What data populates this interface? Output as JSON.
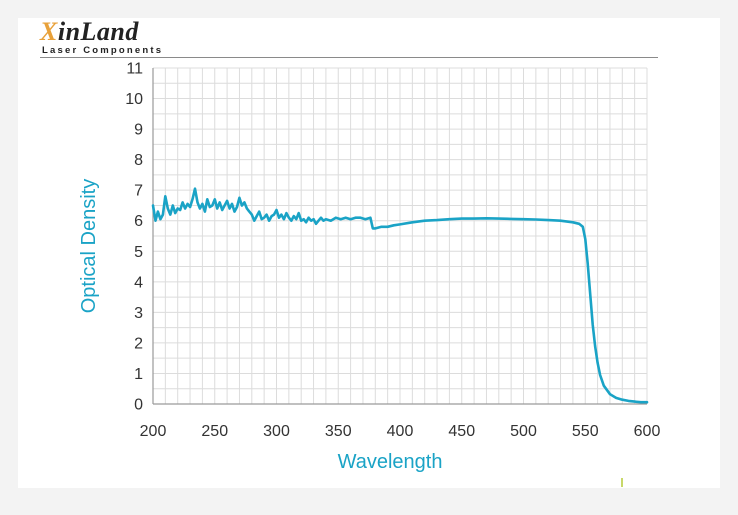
{
  "logo": {
    "name_first": "X",
    "name_rest": "inLand",
    "tagline": "Laser Components"
  },
  "colors": {
    "line": "#1aa3c6",
    "axis_title": "#1aa3c6",
    "grid": "#dcdcdc",
    "logo_accent": "#e8a13a"
  },
  "chart_data": {
    "type": "line",
    "title": "",
    "xlabel": "Wavelength",
    "ylabel": "Optical Density",
    "xlim": [
      200,
      600
    ],
    "ylim": [
      0,
      11
    ],
    "xticks": [
      "200",
      "250",
      "300",
      "350",
      "400",
      "450",
      "500",
      "550",
      "600"
    ],
    "yticks": [
      "0",
      "1",
      "2",
      "3",
      "4",
      "5",
      "6",
      "7",
      "8",
      "9",
      "10",
      "11"
    ],
    "grid": true,
    "series": [
      {
        "name": "",
        "x": [
          200,
          202,
          204,
          206,
          208,
          210,
          212,
          214,
          216,
          218,
          220,
          222,
          224,
          226,
          228,
          230,
          232,
          234,
          236,
          238,
          240,
          242,
          244,
          246,
          248,
          250,
          252,
          254,
          256,
          258,
          260,
          262,
          264,
          266,
          268,
          270,
          272,
          274,
          276,
          278,
          280,
          282,
          284,
          286,
          288,
          290,
          292,
          294,
          296,
          298,
          300,
          302,
          304,
          306,
          308,
          310,
          312,
          314,
          316,
          318,
          320,
          322,
          324,
          326,
          328,
          330,
          332,
          334,
          336,
          338,
          340,
          344,
          348,
          352,
          356,
          360,
          364,
          368,
          372,
          376,
          378,
          380,
          385,
          390,
          395,
          400,
          410,
          420,
          430,
          440,
          450,
          460,
          470,
          480,
          490,
          500,
          510,
          520,
          530,
          540,
          545,
          548,
          550,
          552,
          554,
          556,
          558,
          560,
          562,
          565,
          570,
          575,
          580,
          585,
          590,
          595,
          600
        ],
        "y": [
          6.5,
          6.0,
          6.3,
          6.05,
          6.2,
          6.8,
          6.4,
          6.2,
          6.5,
          6.25,
          6.4,
          6.35,
          6.6,
          6.4,
          6.55,
          6.45,
          6.7,
          7.05,
          6.6,
          6.4,
          6.55,
          6.3,
          6.7,
          6.45,
          6.5,
          6.7,
          6.4,
          6.6,
          6.35,
          6.5,
          6.65,
          6.4,
          6.55,
          6.3,
          6.45,
          6.75,
          6.5,
          6.6,
          6.4,
          6.3,
          6.2,
          6.0,
          6.15,
          6.3,
          6.05,
          6.1,
          6.2,
          6.0,
          6.15,
          6.2,
          6.35,
          6.1,
          6.2,
          6.05,
          6.25,
          6.1,
          6.0,
          6.15,
          6.05,
          6.25,
          6.0,
          6.05,
          5.95,
          6.1,
          6.0,
          6.05,
          5.9,
          6.0,
          6.1,
          6.0,
          6.05,
          6.0,
          6.1,
          6.05,
          6.1,
          6.05,
          6.1,
          6.1,
          6.05,
          6.1,
          5.75,
          5.75,
          5.8,
          5.8,
          5.85,
          5.88,
          5.95,
          6.0,
          6.02,
          6.05,
          6.07,
          6.07,
          6.08,
          6.07,
          6.06,
          6.05,
          6.04,
          6.02,
          6.0,
          5.95,
          5.9,
          5.8,
          5.4,
          4.6,
          3.6,
          2.6,
          1.9,
          1.35,
          0.95,
          0.6,
          0.32,
          0.2,
          0.14,
          0.1,
          0.08,
          0.06,
          0.06
        ]
      }
    ]
  }
}
